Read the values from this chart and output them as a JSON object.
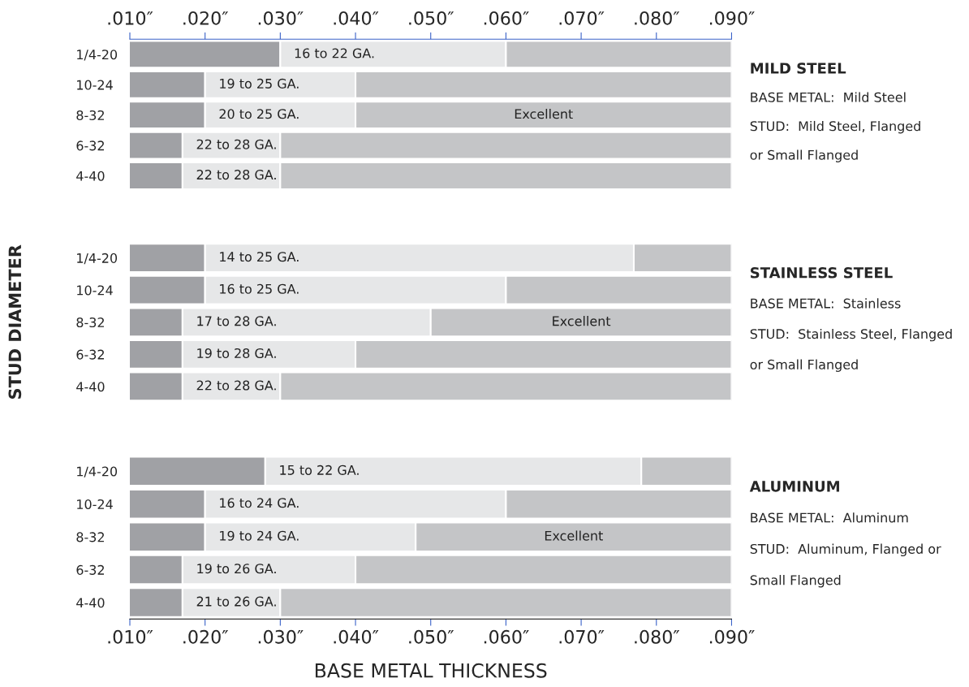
{
  "chart_data": [
    {
      "type": "bar",
      "orientation": "horizontal",
      "stacked": true,
      "categories": [
        "1/4-20",
        "10-24",
        "8-32",
        "6-32",
        "4-40"
      ],
      "series": [
        {
          "color": "#a0a1a5",
          "values": [
            0.03,
            0.02,
            0.02,
            0.017,
            0.017
          ]
        },
        {
          "color": "#e6e7e8",
          "values": [
            0.03,
            0.02,
            0.02,
            0.013,
            0.013
          ]
        },
        {
          "color": "#c4c5c7",
          "values": [
            0.03,
            0.05,
            0.05,
            0.06,
            0.06
          ]
        }
      ],
      "xlim": [
        0.01,
        0.09
      ],
      "tick_labels": "y",
      "x2lim": [
        0.01,
        0.09
      ],
      "x2ticks": [
        {
          "value": 0.01,
          "label": ".010″"
        },
        {
          "value": 0.02,
          "label": ".020″"
        },
        {
          "value": 0.03,
          "label": ".030″"
        },
        {
          "value": 0.04,
          "label": ".040″"
        },
        {
          "value": 0.05,
          "label": ".050″"
        },
        {
          "value": 0.06,
          "label": ".060″"
        },
        {
          "value": 0.07,
          "label": ".070″"
        },
        {
          "value": 0.08,
          "label": ".080″"
        },
        {
          "value": 0.09,
          "label": ".090″"
        }
      ],
      "annotations": [
        {
          "text": "16 to 22 GA.",
          "x": 0.03,
          "y": "1/4-20"
        },
        {
          "text": "19 to 25 GA.",
          "x": 0.02,
          "y": "10-24"
        },
        {
          "text": "20 to 25 GA.",
          "x": 0.02,
          "y": "8-32"
        },
        {
          "text": "22 to 28 GA.",
          "x": 0.017,
          "y": "6-32"
        },
        {
          "text": "22 to 28 GA.",
          "x": 0.017,
          "y": "4-40"
        },
        {
          "text": "Excellent",
          "x": 0.065,
          "y": "8-32"
        },
        "MILD STEEL",
        "BASE METAL:  Mild Steel",
        "STUD:  Mild Steel, Flanged",
        "or Small Flanged"
      ]
    },
    {
      "type": "bar",
      "orientation": "horizontal",
      "stacked": true,
      "categories": [
        "1/4-20",
        "10-24",
        "8-32",
        "6-32",
        "4-40"
      ],
      "series": [
        {
          "color": "#a0a1a5",
          "values": [
            0.02,
            0.02,
            0.017,
            0.017,
            0.017
          ]
        },
        {
          "color": "#e6e7e8",
          "values": [
            0.057,
            0.04,
            0.033,
            0.023,
            0.013
          ]
        },
        {
          "color": "#c4c5c7",
          "values": [
            0.013,
            0.03,
            0.04,
            0.05,
            0.06
          ]
        }
      ],
      "xlim": [
        0.01,
        0.09
      ],
      "tick_labels": "y",
      "ylabel": "STUD DIAMETER",
      "annotations": [
        {
          "text": "14 to 25 GA.",
          "x": 0.02,
          "y": "1/4-20"
        },
        {
          "text": "16 to 25 GA.",
          "x": 0.02,
          "y": "10-24"
        },
        {
          "text": "17 to 28 GA.",
          "x": 0.017,
          "y": "8-32"
        },
        {
          "text": "19 to 28 GA.",
          "x": 0.017,
          "y": "6-32"
        },
        {
          "text": "22 to 28 GA.",
          "x": 0.017,
          "y": "4-40"
        },
        {
          "text": "Excellent",
          "x": 0.07,
          "y": "8-32"
        },
        "STAINLESS STEEL",
        "BASE METAL:  Stainless",
        "STUD:  Stainless Steel, Flanged",
        "or Small Flanged"
      ]
    },
    {
      "type": "bar",
      "orientation": "horizontal",
      "stacked": true,
      "categories": [
        "1/4-20",
        "10-24",
        "8-32",
        "6-32",
        "4-40"
      ],
      "series": [
        {
          "color": "#a0a1a5",
          "values": [
            0.028,
            0.02,
            0.02,
            0.017,
            0.017
          ]
        },
        {
          "color": "#e6e7e8",
          "values": [
            0.05,
            0.04,
            0.028,
            0.023,
            0.013
          ]
        },
        {
          "color": "#c4c5c7",
          "values": [
            0.012,
            0.03,
            0.042,
            0.05,
            0.06
          ]
        }
      ],
      "xlim": [
        0.01,
        0.09
      ],
      "xlabel": "BASE METAL THICKNESS",
      "xticks": [
        {
          "value": 0.01,
          "label": ".010″"
        },
        {
          "value": 0.02,
          "label": ".020″"
        },
        {
          "value": 0.03,
          "label": ".030″"
        },
        {
          "value": 0.04,
          "label": ".040″"
        },
        {
          "value": 0.05,
          "label": ".050″"
        },
        {
          "value": 0.06,
          "label": ".060″"
        },
        {
          "value": 0.07,
          "label": ".070″"
        },
        {
          "value": 0.08,
          "label": ".080″"
        },
        {
          "value": 0.09,
          "label": ".090″"
        }
      ],
      "annotations": [
        {
          "text": "15 to 22 GA.",
          "x": 0.028,
          "y": "1/4-20"
        },
        {
          "text": "16 to 24 GA.",
          "x": 0.02,
          "y": "10-24"
        },
        {
          "text": "19 to 24 GA.",
          "x": 0.02,
          "y": "8-32"
        },
        {
          "text": "19 to 26 GA.",
          "x": 0.017,
          "y": "6-32"
        },
        {
          "text": "21 to 26 GA.",
          "x": 0.017,
          "y": "4-40"
        },
        {
          "text": "Excellent",
          "x": 0.069,
          "y": "8-32"
        },
        "ALUMINUM",
        "BASE METAL:  Aluminum",
        "STUD:  Aluminum, Flanged or",
        "Small Flanged"
      ]
    }
  ]
}
